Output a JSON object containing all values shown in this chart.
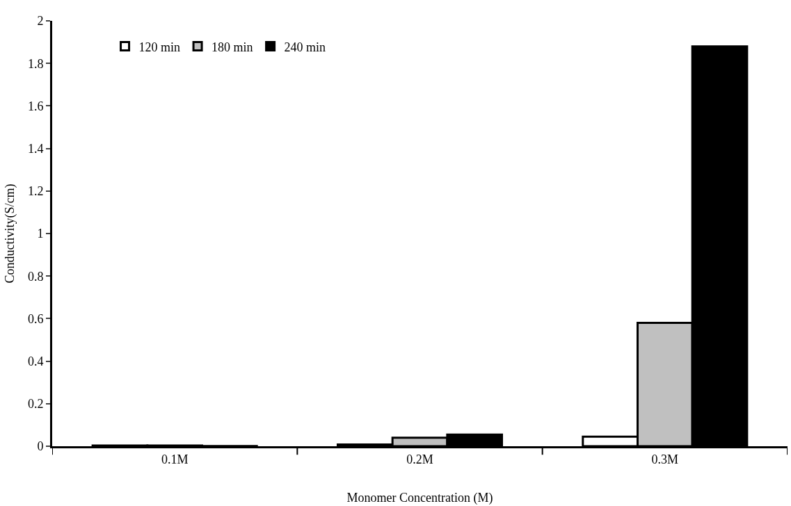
{
  "chart_data": {
    "type": "bar",
    "xlabel": "Monomer Concentration (M)",
    "ylabel": "Conductivity(S/cm)",
    "categories": [
      "0.1M",
      "0.2M",
      "0.3M"
    ],
    "series": [
      {
        "name": "120 min",
        "color": "#ffffff",
        "values": [
          0.003,
          0.008,
          0.045
        ]
      },
      {
        "name": "180 min",
        "color": "#c0c0c0",
        "values": [
          0.003,
          0.04,
          0.58
        ]
      },
      {
        "name": "240 min",
        "color": "#000000",
        "values": [
          0.001,
          0.055,
          1.88
        ]
      }
    ],
    "ylim": [
      0,
      2
    ],
    "yticks": [
      0,
      0.2,
      0.4,
      0.6,
      0.8,
      1,
      1.2,
      1.4,
      1.6,
      1.8,
      2
    ],
    "grid": false,
    "legend": "top left"
  }
}
